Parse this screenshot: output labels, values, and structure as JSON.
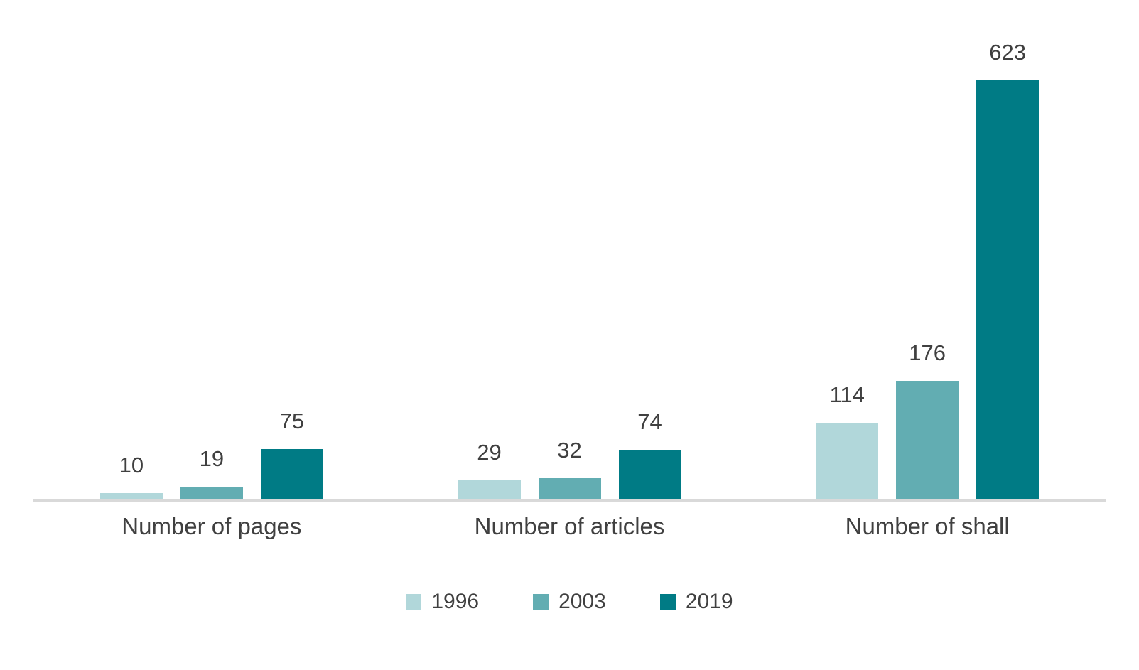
{
  "chart_data": {
    "type": "bar",
    "title": "",
    "xlabel": "",
    "ylabel": "",
    "categories": [
      "Number of pages",
      "Number of articles",
      "Number of shall"
    ],
    "series": [
      {
        "name": "1996",
        "color": "#b1d7da",
        "values": [
          10,
          29,
          114
        ]
      },
      {
        "name": "2003",
        "color": "#62adb2",
        "values": [
          19,
          32,
          176
        ]
      },
      {
        "name": "2019",
        "color": "#007b85",
        "values": [
          75,
          74,
          623
        ]
      }
    ],
    "ylim": [
      0,
      660
    ],
    "grid": false,
    "y_axis_visible": false,
    "data_labels": true,
    "legend_position": "bottom",
    "axis_line_color": "#d9d9d9",
    "text_color": "#404040",
    "background_color": "#ffffff"
  }
}
